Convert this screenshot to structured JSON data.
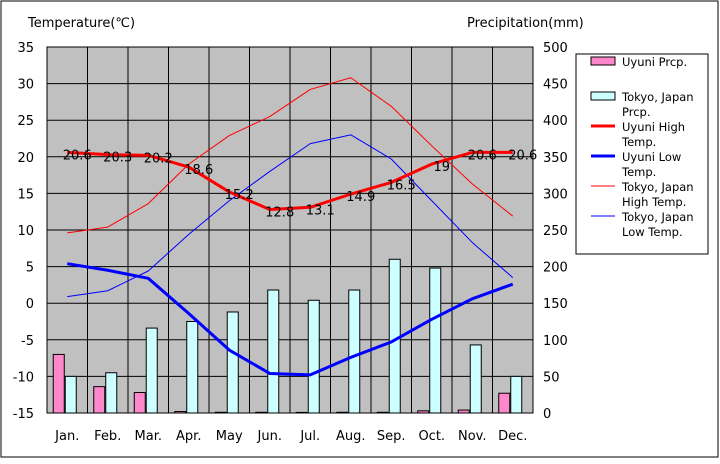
{
  "chart_data": {
    "type": "bar+line",
    "title": "",
    "ylabel_left": "Temperature(℃)",
    "ylabel_right": "Precipitation(mm)",
    "ylim_left": [
      -15,
      35
    ],
    "ylim_right": [
      0,
      500
    ],
    "yticks_left": [
      "35",
      "30",
      "25",
      "20",
      "15",
      "10",
      "5",
      "0",
      "-5",
      "-10",
      "-15"
    ],
    "yticks_right": [
      "500",
      "450",
      "400",
      "350",
      "300",
      "250",
      "200",
      "150",
      "100",
      "50",
      "0"
    ],
    "categories": [
      "Jan.",
      "Feb.",
      "Mar.",
      "Apr.",
      "May",
      "Jun.",
      "Jul.",
      "Aug.",
      "Sep.",
      "Oct.",
      "Nov.",
      "Dec."
    ],
    "grid": true,
    "legend_position": "right",
    "series": [
      {
        "name": "Uyuni Prcp.",
        "kind": "bar",
        "axis": "right",
        "color": "#ff88cc",
        "legend_lines": [
          "Uyuni Prcp."
        ],
        "values": [
          80,
          36,
          28,
          2,
          1,
          1,
          0,
          1,
          1,
          3,
          4,
          27
        ]
      },
      {
        "name": "Tokyo, Japan Prcp.",
        "kind": "bar",
        "axis": "right",
        "color": "#ccffff",
        "legend_lines": [
          "Tokyo, Japan",
          "Prcp."
        ],
        "values": [
          50,
          55,
          116,
          125,
          138,
          168,
          154,
          168,
          210,
          198,
          93,
          50
        ]
      },
      {
        "name": "Uyuni High Temp.",
        "kind": "line",
        "axis": "left",
        "color": "#ff0000",
        "width": "thick",
        "legend_lines": [
          "Uyuni High",
          "Temp."
        ],
        "values": [
          20.6,
          20.3,
          20.2,
          18.6,
          15.2,
          12.8,
          13.1,
          14.9,
          16.5,
          19,
          20.6,
          20.6
        ],
        "labels": [
          "20.6",
          "20.3",
          "20.2",
          "18.6",
          "15.2",
          "12.8",
          "13.1",
          "14.9",
          "16.5",
          "19",
          "20.6",
          "20.6"
        ]
      },
      {
        "name": "Uyuni Low Temp.",
        "kind": "line",
        "axis": "left",
        "color": "#0000ff",
        "width": "thick",
        "legend_lines": [
          "Uyuni Low",
          "Temp."
        ],
        "values": [
          5.4,
          4.5,
          3.4,
          -1.4,
          -6.4,
          -9.6,
          -9.8,
          -7.4,
          -5.3,
          -2.2,
          0.6,
          2.6
        ]
      },
      {
        "name": "Tokyo, Japan High Temp.",
        "kind": "line",
        "axis": "left",
        "color": "#ff0000",
        "width": "thin",
        "legend_lines": [
          "Tokyo, Japan",
          "High Temp."
        ],
        "values": [
          9.6,
          10.4,
          13.6,
          19.0,
          22.9,
          25.5,
          29.2,
          30.8,
          26.9,
          21.5,
          16.3,
          11.9
        ]
      },
      {
        "name": "Tokyo, Japan Low Temp.",
        "kind": "line",
        "axis": "left",
        "color": "#0000ff",
        "width": "thin",
        "legend_lines": [
          "Tokyo, Japan",
          "Low Temp."
        ],
        "values": [
          0.9,
          1.7,
          4.4,
          9.4,
          14.0,
          18.0,
          21.8,
          23.0,
          19.7,
          14.0,
          8.3,
          3.5
        ]
      }
    ]
  }
}
